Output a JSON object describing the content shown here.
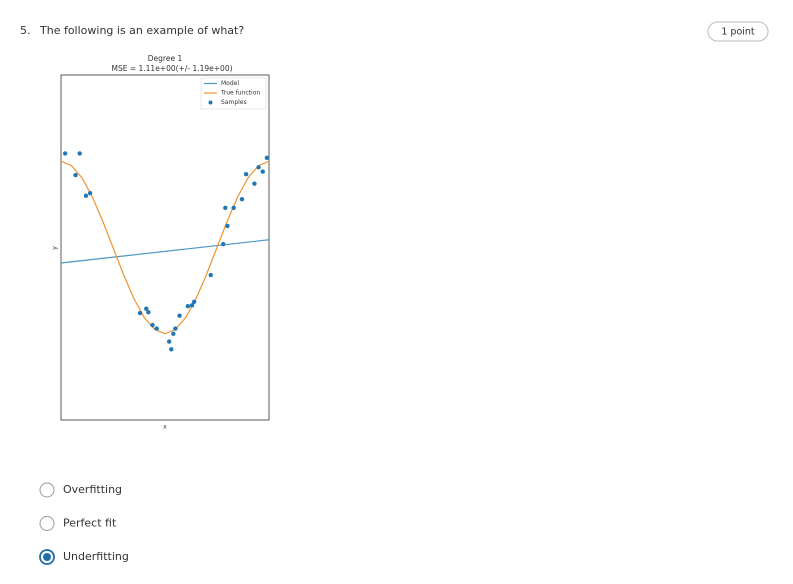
{
  "question": {
    "number": "5.",
    "text": "The following is an example of what?",
    "points": "1 point"
  },
  "chart_data": {
    "type": "line",
    "title": "Degree 1",
    "subtitle": "MSE = 1.11e+00(+/- 1.19e+00)",
    "x_label": "x",
    "y_label": "y",
    "xlim": [
      0,
      1
    ],
    "ylim": [
      -2,
      2
    ],
    "legend": "upper right",
    "series": [
      {
        "name": "Model",
        "type": "line",
        "color": "#4a97c2",
        "x": [
          0,
          1
        ],
        "values": [
          -0.18,
          0.09
        ]
      },
      {
        "name": "True function",
        "type": "line",
        "color": "#f0922e",
        "x": [
          0,
          0.05,
          0.1,
          0.15,
          0.2,
          0.25,
          0.3,
          0.35,
          0.4,
          0.45,
          0.5,
          0.55,
          0.6,
          0.65,
          0.7,
          0.75,
          0.8,
          0.85,
          0.9,
          0.95,
          1
        ],
        "values": [
          1,
          0.95,
          0.81,
          0.59,
          0.31,
          0,
          -0.31,
          -0.59,
          -0.81,
          -0.95,
          -1,
          -0.95,
          -0.81,
          -0.59,
          -0.31,
          0,
          0.31,
          0.59,
          0.81,
          0.95,
          1
        ]
      },
      {
        "name": "Samples",
        "type": "scatter",
        "color": "#1f77b4",
        "x": [
          0.02,
          0.09,
          0.07,
          0.12,
          0.14,
          0.38,
          0.41,
          0.42,
          0.44,
          0.46,
          0.52,
          0.53,
          0.54,
          0.55,
          0.57,
          0.61,
          0.63,
          0.64,
          0.72,
          0.78,
          0.8,
          0.79,
          0.83,
          0.87,
          0.89,
          0.93,
          0.95,
          0.97,
          0.99
        ],
        "values": [
          1.09,
          1.09,
          0.84,
          0.6,
          0.63,
          -0.76,
          -0.71,
          -0.75,
          -0.9,
          -0.94,
          -1.09,
          -1.18,
          -1,
          -0.94,
          -0.79,
          -0.68,
          -0.67,
          -0.63,
          -0.32,
          0.04,
          0.25,
          0.46,
          0.46,
          0.56,
          0.85,
          0.74,
          0.93,
          0.88,
          1.04
        ]
      }
    ]
  },
  "options": [
    "Overfitting",
    "Perfect fit",
    "Underfitting"
  ],
  "selected": 2
}
